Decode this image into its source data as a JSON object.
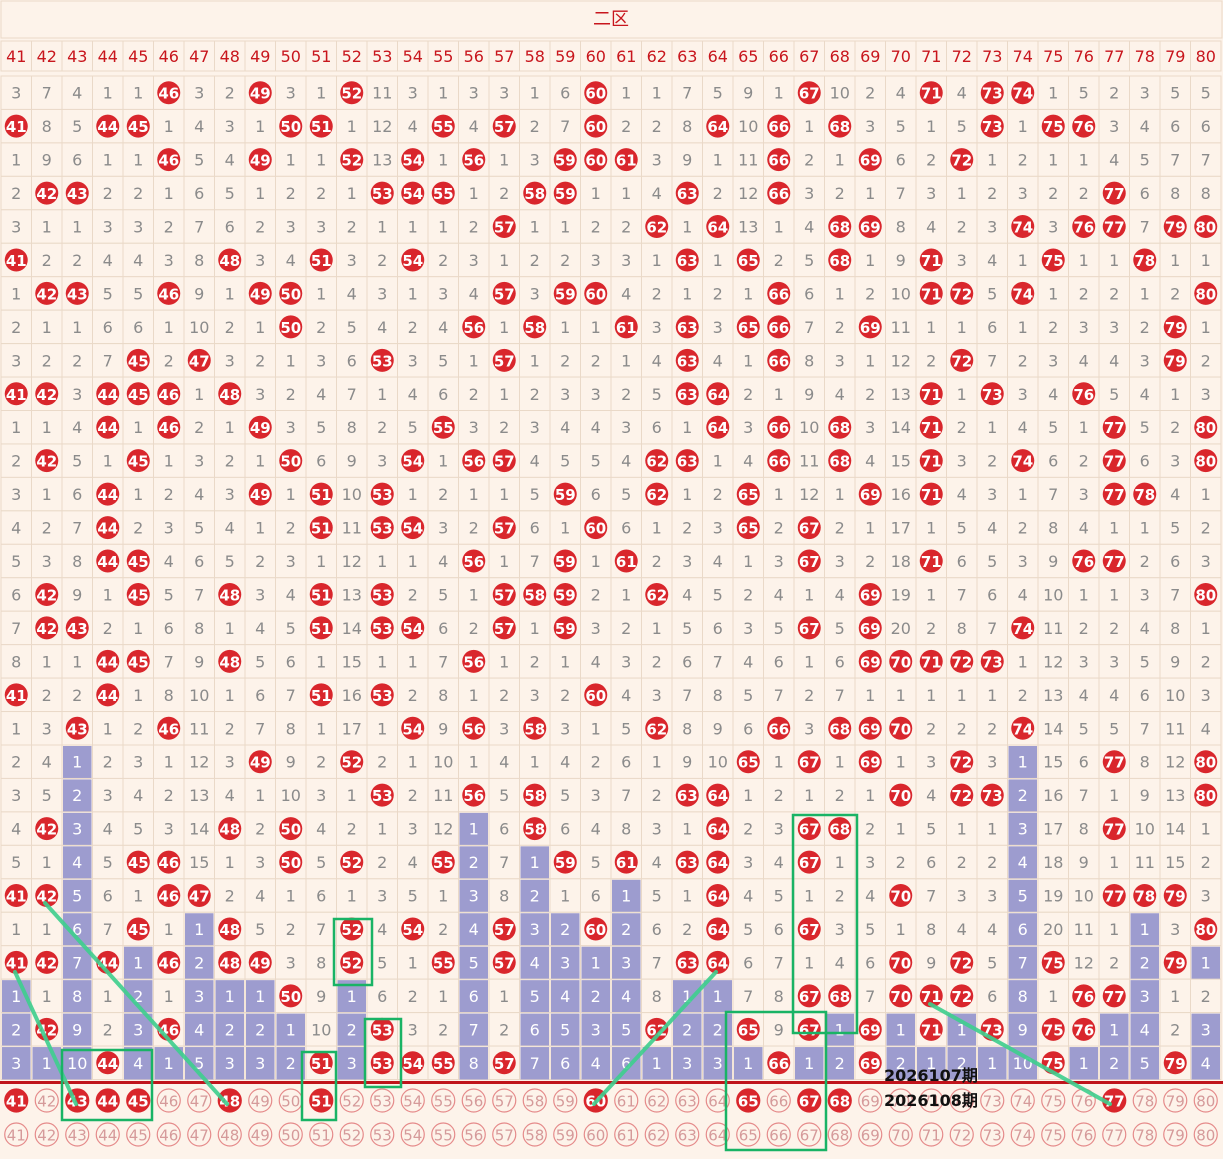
{
  "colors": {
    "background": "#fdf3ea",
    "header_bg": "#fdf3ea",
    "header_text": "#c8161d",
    "grid": "#ead9c8",
    "number_text": "#8b8b8b",
    "ball": "#d9262c",
    "bar": "#9d9ccf",
    "bar_text": "#ffffff",
    "trend_line": "#3ecf8e",
    "box": "#19b365",
    "divider": "#c0141b"
  },
  "chart_data": {
    "type": "table",
    "title": "二区",
    "columns": [
      41,
      42,
      43,
      44,
      45,
      46,
      47,
      48,
      49,
      50,
      51,
      52,
      53,
      54,
      55,
      56,
      57,
      58,
      59,
      60,
      61,
      62,
      63,
      64,
      65,
      66,
      67,
      68,
      69,
      70,
      71,
      72,
      73,
      74,
      75,
      76,
      77,
      78,
      79,
      80
    ],
    "rows": [
      [
        3,
        7,
        4,
        1,
        1,
        "46",
        3,
        2,
        "49",
        3,
        1,
        "52",
        11,
        3,
        1,
        3,
        3,
        1,
        6,
        "60",
        1,
        1,
        7,
        5,
        9,
        1,
        "67",
        10,
        2,
        4,
        "71",
        4,
        "73",
        "74",
        1,
        5,
        2,
        3,
        5,
        5
      ],
      [
        "41",
        8,
        5,
        "44",
        "45",
        1,
        4,
        3,
        1,
        "50",
        "51",
        1,
        12,
        4,
        "55",
        4,
        "57",
        2,
        7,
        "60",
        2,
        2,
        8,
        "64",
        10,
        "66",
        1,
        "68",
        3,
        5,
        1,
        5,
        "73",
        1,
        "75",
        "76",
        3,
        4,
        6,
        6
      ],
      [
        1,
        9,
        6,
        1,
        1,
        "46",
        5,
        4,
        "49",
        1,
        1,
        "52",
        13,
        "54",
        1,
        "56",
        1,
        3,
        "59",
        "60",
        "61",
        3,
        9,
        1,
        11,
        "66",
        2,
        1,
        "69",
        6,
        2,
        "72",
        1,
        2,
        1,
        1,
        4,
        5,
        7,
        7
      ],
      [
        2,
        "42",
        "43",
        2,
        2,
        1,
        6,
        5,
        1,
        2,
        2,
        1,
        "53",
        "54",
        "55",
        1,
        2,
        "58",
        "59",
        1,
        1,
        4,
        "63",
        2,
        12,
        "66",
        3,
        2,
        1,
        7,
        3,
        1,
        2,
        3,
        2,
        2,
        "77",
        6,
        8,
        8
      ],
      [
        3,
        1,
        1,
        3,
        3,
        2,
        7,
        6,
        2,
        3,
        3,
        2,
        1,
        1,
        1,
        2,
        "57",
        1,
        1,
        2,
        2,
        "62",
        1,
        "64",
        13,
        1,
        4,
        "68",
        "69",
        8,
        4,
        2,
        3,
        "74",
        3,
        "76",
        "77",
        7,
        "79",
        "80"
      ],
      [
        "41",
        2,
        2,
        4,
        4,
        3,
        8,
        "48",
        3,
        4,
        "51",
        3,
        2,
        "54",
        2,
        3,
        1,
        2,
        2,
        3,
        3,
        1,
        "63",
        1,
        "65",
        2,
        5,
        "68",
        1,
        9,
        "71",
        3,
        4,
        1,
        "75",
        1,
        1,
        "78",
        1,
        1
      ],
      [
        1,
        "42",
        "43",
        5,
        5,
        "46",
        9,
        1,
        "49",
        "50",
        1,
        4,
        3,
        1,
        3,
        4,
        "57",
        3,
        "59",
        "60",
        4,
        2,
        1,
        2,
        1,
        "66",
        6,
        1,
        2,
        10,
        "71",
        "72",
        5,
        "74",
        1,
        2,
        2,
        1,
        2,
        "80"
      ],
      [
        2,
        1,
        1,
        6,
        6,
        1,
        10,
        2,
        1,
        "50",
        2,
        5,
        4,
        2,
        4,
        "56",
        1,
        "58",
        1,
        1,
        "61",
        3,
        "63",
        3,
        "65",
        "66",
        7,
        2,
        "69",
        11,
        1,
        1,
        6,
        1,
        2,
        3,
        3,
        2,
        "79",
        1
      ],
      [
        3,
        2,
        2,
        7,
        "45",
        2,
        "47",
        3,
        2,
        1,
        3,
        6,
        "53",
        3,
        5,
        1,
        "57",
        1,
        2,
        2,
        1,
        4,
        "63",
        4,
        1,
        "66",
        8,
        3,
        1,
        12,
        2,
        "72",
        7,
        2,
        3,
        4,
        4,
        3,
        "79",
        2
      ],
      [
        "41",
        "42",
        3,
        "44",
        "45",
        "46",
        1,
        "48",
        3,
        2,
        4,
        7,
        1,
        4,
        6,
        2,
        1,
        2,
        3,
        3,
        2,
        5,
        "63",
        "64",
        2,
        1,
        9,
        4,
        2,
        13,
        "71",
        1,
        "73",
        3,
        4,
        "76",
        5,
        4,
        1,
        3
      ],
      [
        1,
        1,
        4,
        "44",
        1,
        "46",
        2,
        1,
        "49",
        3,
        5,
        8,
        2,
        5,
        "55",
        3,
        2,
        3,
        4,
        4,
        3,
        6,
        1,
        "64",
        3,
        "66",
        10,
        "68",
        3,
        14,
        "71",
        2,
        1,
        4,
        5,
        1,
        "77",
        5,
        2,
        "80"
      ],
      [
        2,
        "42",
        5,
        1,
        "45",
        1,
        3,
        2,
        1,
        "50",
        6,
        9,
        3,
        "54",
        1,
        "56",
        "57",
        4,
        5,
        5,
        4,
        "62",
        "63",
        1,
        4,
        "66",
        11,
        "68",
        4,
        15,
        "71",
        3,
        2,
        "74",
        6,
        2,
        "77",
        6,
        3,
        "80"
      ],
      [
        3,
        1,
        6,
        "44",
        1,
        2,
        4,
        3,
        "49",
        1,
        "51",
        10,
        "53",
        1,
        2,
        1,
        1,
        5,
        "59",
        6,
        5,
        "62",
        1,
        2,
        "65",
        1,
        12,
        1,
        "69",
        16,
        "71",
        4,
        3,
        1,
        7,
        3,
        "77",
        "78",
        4,
        1
      ],
      [
        4,
        2,
        7,
        "44",
        2,
        3,
        5,
        4,
        1,
        2,
        "51",
        11,
        "53",
        "54",
        3,
        2,
        "57",
        6,
        1,
        "60",
        6,
        1,
        2,
        3,
        "65",
        2,
        "67",
        2,
        1,
        17,
        1,
        5,
        4,
        2,
        8,
        4,
        1,
        1,
        5,
        2
      ],
      [
        5,
        3,
        8,
        "44",
        "45",
        4,
        6,
        5,
        2,
        3,
        1,
        12,
        1,
        1,
        4,
        "56",
        1,
        7,
        "59",
        1,
        "61",
        2,
        3,
        4,
        1,
        3,
        "67",
        3,
        2,
        18,
        "71",
        6,
        5,
        3,
        9,
        "76",
        "77",
        2,
        6,
        3
      ],
      [
        6,
        "42",
        9,
        1,
        "45",
        5,
        7,
        "48",
        3,
        4,
        "51",
        13,
        "53",
        2,
        5,
        1,
        "57",
        "58",
        "59",
        2,
        1,
        "62",
        4,
        5,
        2,
        4,
        1,
        4,
        "69",
        19,
        1,
        7,
        6,
        4,
        10,
        1,
        1,
        3,
        7,
        "80"
      ],
      [
        7,
        "42",
        "43",
        2,
        1,
        6,
        8,
        1,
        4,
        5,
        "51",
        14,
        "53",
        "54",
        6,
        2,
        "57",
        1,
        "59",
        3,
        2,
        1,
        5,
        6,
        3,
        5,
        "67",
        5,
        "69",
        20,
        2,
        8,
        7,
        "74",
        11,
        2,
        2,
        4,
        8,
        1
      ],
      [
        8,
        1,
        1,
        "44",
        "45",
        7,
        9,
        "48",
        5,
        6,
        1,
        15,
        1,
        1,
        7,
        "56",
        1,
        2,
        1,
        4,
        3,
        2,
        6,
        7,
        4,
        6,
        1,
        6,
        "69",
        "70",
        "71",
        "72",
        "73",
        1,
        12,
        3,
        3,
        5,
        9,
        2
      ],
      [
        "41",
        2,
        2,
        "44",
        1,
        8,
        10,
        1,
        6,
        7,
        "51",
        16,
        "53",
        2,
        8,
        1,
        2,
        3,
        2,
        "60",
        4,
        3,
        7,
        8,
        5,
        7,
        2,
        7,
        1,
        1,
        1,
        1,
        1,
        2,
        13,
        4,
        4,
        6,
        10,
        3
      ],
      [
        1,
        3,
        "43",
        1,
        2,
        "46",
        11,
        2,
        7,
        8,
        1,
        17,
        1,
        "54",
        9,
        "56",
        3,
        "58",
        3,
        1,
        5,
        "62",
        8,
        9,
        6,
        "66",
        3,
        "68",
        "69",
        "70",
        2,
        2,
        2,
        "74",
        14,
        5,
        5,
        7,
        11,
        4
      ],
      [
        2,
        4,
        {
          "bar": 1
        },
        2,
        3,
        1,
        12,
        3,
        "49",
        9,
        2,
        "52",
        2,
        1,
        10,
        1,
        4,
        1,
        4,
        2,
        6,
        1,
        9,
        10,
        "65",
        1,
        "67",
        1,
        "69",
        1,
        3,
        "72",
        3,
        {
          "bar": 1
        },
        15,
        6,
        "77",
        8,
        12,
        "80"
      ],
      [
        3,
        5,
        {
          "bar": 2
        },
        3,
        4,
        2,
        13,
        4,
        1,
        10,
        3,
        1,
        "53",
        2,
        11,
        "56",
        5,
        "58",
        5,
        3,
        7,
        2,
        "63",
        "64",
        1,
        2,
        1,
        2,
        1,
        "70",
        4,
        "72",
        "73",
        {
          "bar": 2
        },
        16,
        7,
        1,
        9,
        13,
        "80"
      ],
      [
        4,
        "42",
        {
          "bar": 3
        },
        4,
        5,
        3,
        14,
        "48",
        2,
        "50",
        4,
        2,
        1,
        3,
        12,
        {
          "bar": 1
        },
        6,
        "58",
        6,
        4,
        8,
        3,
        1,
        "64",
        2,
        3,
        "67",
        "68",
        2,
        1,
        5,
        1,
        1,
        {
          "bar": 3
        },
        17,
        8,
        "77",
        10,
        14,
        1
      ],
      [
        5,
        1,
        {
          "bar": 4
        },
        5,
        "45",
        "46",
        15,
        1,
        3,
        "50",
        5,
        "52",
        2,
        4,
        "55",
        {
          "bar": 2
        },
        7,
        {
          "bar": 1
        },
        "59",
        5,
        "61",
        4,
        "63",
        "64",
        3,
        4,
        "67",
        1,
        3,
        2,
        6,
        2,
        2,
        {
          "bar": 4
        },
        18,
        9,
        1,
        11,
        15,
        2
      ],
      [
        "41",
        "42",
        {
          "bar": 5
        },
        6,
        1,
        "46",
        "47",
        2,
        4,
        1,
        6,
        1,
        3,
        5,
        1,
        {
          "bar": 3
        },
        8,
        {
          "bar": 2
        },
        1,
        6,
        {
          "bar": 1
        },
        5,
        1,
        "64",
        4,
        5,
        1,
        2,
        4,
        "70",
        7,
        3,
        3,
        {
          "bar": 5
        },
        19,
        10,
        "77",
        "78",
        "79",
        3
      ],
      [
        1,
        1,
        {
          "bar": 6
        },
        7,
        "45",
        1,
        {
          "bar": 1
        },
        "48",
        5,
        2,
        7,
        "52",
        4,
        "54",
        2,
        {
          "bar": 4
        },
        "57",
        {
          "bar": 3
        },
        {
          "bar": 2
        },
        "60",
        {
          "bar": 2
        },
        6,
        2,
        "64",
        5,
        6,
        "67",
        3,
        5,
        1,
        8,
        4,
        4,
        {
          "bar": 6
        },
        20,
        11,
        1,
        {
          "bar": 1
        },
        3,
        "80"
      ],
      [
        "41",
        "42",
        {
          "bar": 7
        },
        "44",
        {
          "bar": 1
        },
        "46",
        {
          "bar": 2
        },
        "48",
        "49",
        3,
        8,
        "52",
        5,
        1,
        "55",
        {
          "bar": 5
        },
        "57",
        {
          "bar": 4
        },
        {
          "bar": 3
        },
        {
          "bar": 1
        },
        {
          "bar": 3
        },
        7,
        "63",
        "64",
        6,
        7,
        1,
        4,
        6,
        "70",
        9,
        "72",
        5,
        {
          "bar": 7
        },
        "75",
        12,
        2,
        {
          "bar": 2
        },
        "79",
        {
          "bar": 1
        }
      ],
      [
        {
          "bar": 1
        },
        1,
        {
          "bar": 8
        },
        1,
        {
          "bar": 2
        },
        1,
        {
          "bar": 3
        },
        {
          "bar": 1
        },
        {
          "bar": 1
        },
        "50",
        9,
        {
          "bar": 1
        },
        6,
        2,
        1,
        {
          "bar": 6
        },
        1,
        {
          "bar": 5
        },
        {
          "bar": 4
        },
        {
          "bar": 2
        },
        {
          "bar": 4
        },
        8,
        {
          "bar": 1
        },
        {
          "bar": 1
        },
        7,
        8,
        "67",
        "68",
        7,
        "70",
        "71",
        "72",
        6,
        {
          "bar": 8
        },
        1,
        "76",
        "77",
        {
          "bar": 3
        },
        1,
        2
      ],
      [
        {
          "bar": 2
        },
        "42",
        {
          "bar": 9
        },
        2,
        {
          "bar": 3
        },
        "46",
        {
          "bar": 4
        },
        {
          "bar": 2
        },
        {
          "bar": 2
        },
        {
          "bar": 1
        },
        10,
        {
          "bar": 2
        },
        "53",
        3,
        2,
        {
          "bar": 7
        },
        2,
        {
          "bar": 6
        },
        {
          "bar": 5
        },
        {
          "bar": 3
        },
        {
          "bar": 5
        },
        "62",
        {
          "bar": 2
        },
        {
          "bar": 2
        },
        "65",
        9,
        "67",
        {
          "bar": 1
        },
        "69",
        {
          "bar": 1
        },
        "71",
        {
          "bar": 1
        },
        "73",
        {
          "bar": 9
        },
        "75",
        "76",
        {
          "bar": 1
        },
        {
          "bar": 4
        },
        2,
        {
          "bar": 3
        }
      ],
      [
        {
          "bar": 3
        },
        {
          "bar": 1
        },
        {
          "bar": 10
        },
        "44",
        {
          "bar": 4
        },
        {
          "bar": 1
        },
        {
          "bar": 5
        },
        {
          "bar": 3
        },
        {
          "bar": 3
        },
        {
          "bar": 2
        },
        "51",
        {
          "bar": 3
        },
        "53",
        "54",
        "55",
        {
          "bar": 8
        },
        "57",
        {
          "bar": 7
        },
        {
          "bar": 6
        },
        {
          "bar": 4
        },
        {
          "bar": 6
        },
        {
          "bar": 1
        },
        {
          "bar": 3
        },
        {
          "bar": 3
        },
        {
          "bar": 1
        },
        "66",
        {
          "bar": 1
        },
        {
          "bar": 2
        },
        "69",
        {
          "bar": 2
        },
        {
          "bar": 1
        },
        {
          "bar": 2
        },
        {
          "bar": 1
        },
        {
          "bar": 10
        },
        "75",
        {
          "bar": 1
        },
        {
          "bar": 2
        },
        {
          "bar": 5
        },
        "79",
        {
          "bar": 4
        }
      ]
    ],
    "latest_draw": [
      41,
      43,
      44,
      45,
      48,
      51,
      60,
      65,
      67,
      68,
      77
    ],
    "label_2026107": "2026107期",
    "label_2026108": "2026108期",
    "trend_lines": [
      [
        [
          15,
          972
        ],
        [
          76,
          1104
        ]
      ],
      [
        [
          45,
          903
        ],
        [
          227,
          1104
        ]
      ],
      [
        [
          594,
          1104
        ],
        [
          716,
          972
        ]
      ],
      [
        [
          930,
          1004
        ],
        [
          1110,
          1104
        ]
      ]
    ],
    "boxes": [
      [
        62,
        1050,
        90,
        70
      ],
      [
        334,
        919,
        38,
        66
      ],
      [
        365,
        1019,
        36,
        68
      ],
      [
        302,
        1052,
        34,
        68
      ],
      [
        726,
        1012,
        100,
        138
      ],
      [
        793,
        815,
        64,
        218
      ]
    ]
  }
}
